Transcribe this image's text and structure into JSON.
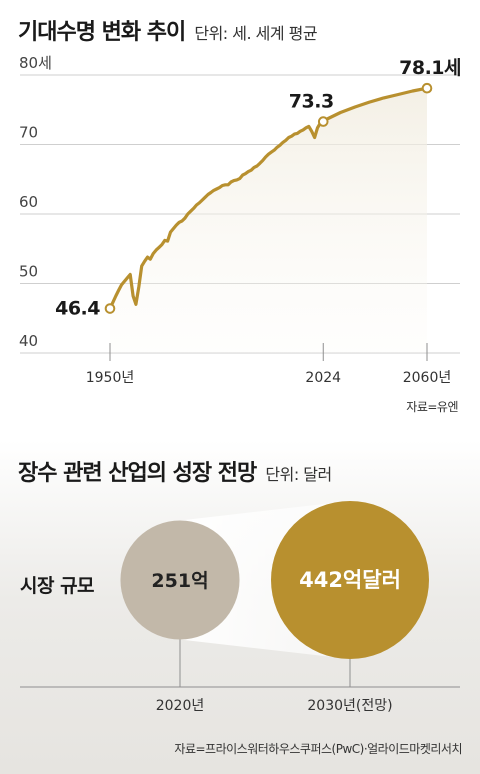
{
  "section1": {
    "title": "기대수명 변화 추이",
    "unit": "단위: 세. 세계 평균",
    "source": "자료=유엔"
  },
  "section2": {
    "title": "장수 관련 산업의 성장 전망",
    "unit": "단위: 달러",
    "row_label": "시장 규모",
    "source": "자료=프라이스워터하우스쿠퍼스(PwC)·얼라이드마켓리서치"
  },
  "colors": {
    "accent": "#b8902f",
    "bubble_2020": "#c2b8a9",
    "bubble_2030": "#b8902f",
    "grid": "#cfcfcf"
  },
  "chart_data": [
    {
      "type": "area",
      "title": "기대수명 변화 추이",
      "ylabel": "세",
      "y_ticks": [
        40,
        50,
        60,
        70,
        80
      ],
      "y_tick_labels": [
        "40",
        "50",
        "60",
        "70",
        "80세"
      ],
      "ylim": [
        40,
        80
      ],
      "x_ticks": [
        1950,
        2024,
        2060
      ],
      "x_tick_labels": [
        "1950년",
        "2024",
        "2060년"
      ],
      "xlim": [
        1950,
        2060
      ],
      "grid": true,
      "series": [
        {
          "x": [
            1950,
            1951,
            1952,
            1953,
            1954,
            1955,
            1956,
            1957,
            1958,
            1959,
            1960,
            1961,
            1962,
            1963,
            1964,
            1965,
            1966,
            1967,
            1968,
            1969,
            1970,
            1971,
            1972,
            1973,
            1974,
            1975,
            1976,
            1977,
            1978,
            1979,
            1980,
            1981,
            1982,
            1983,
            1984,
            1985,
            1986,
            1987,
            1988,
            1989,
            1990,
            1991,
            1992,
            1993,
            1994,
            1995,
            1996,
            1997,
            1998,
            1999,
            2000,
            2001,
            2002,
            2003,
            2004,
            2005,
            2006,
            2007,
            2008,
            2009,
            2010,
            2011,
            2012,
            2013,
            2014,
            2015,
            2016,
            2017,
            2018,
            2019,
            2020,
            2021,
            2022,
            2023,
            2024,
            2025,
            2030,
            2035,
            2040,
            2045,
            2050,
            2055,
            2060
          ],
          "y": [
            46.4,
            47.3,
            48.2,
            49.0,
            49.8,
            50.3,
            50.8,
            51.3,
            48.2,
            47.0,
            49.5,
            52.5,
            53.2,
            53.8,
            53.5,
            54.3,
            54.8,
            55.2,
            55.6,
            56.2,
            56.1,
            57.4,
            57.9,
            58.4,
            58.8,
            59.0,
            59.4,
            60.0,
            60.4,
            60.8,
            61.3,
            61.6,
            62.0,
            62.4,
            62.8,
            63.1,
            63.4,
            63.6,
            63.8,
            64.1,
            64.2,
            64.2,
            64.6,
            64.8,
            64.9,
            65.1,
            65.6,
            65.8,
            66.1,
            66.3,
            66.7,
            66.9,
            67.3,
            67.7,
            68.2,
            68.6,
            68.9,
            69.2,
            69.6,
            69.9,
            70.3,
            70.6,
            71.0,
            71.2,
            71.5,
            71.6,
            71.9,
            72.1,
            72.4,
            72.6,
            71.9,
            71.0,
            72.4,
            73.1,
            73.3,
            73.6,
            74.6,
            75.4,
            76.1,
            76.7,
            77.2,
            77.7,
            78.1
          ]
        }
      ],
      "annotations": [
        {
          "x": 1950,
          "y": 46.4,
          "text": "46.4"
        },
        {
          "x": 2024,
          "y": 73.3,
          "text": "73.3"
        },
        {
          "x": 2060,
          "y": 78.1,
          "text": "78.1세"
        }
      ]
    },
    {
      "type": "bubble",
      "title": "장수 관련 산업의 성장 전망",
      "unit": "달러",
      "categories": [
        "2020년",
        "2030년(전망)"
      ],
      "values": [
        251,
        442
      ],
      "value_labels": [
        "251억",
        "442억달러"
      ]
    }
  ]
}
